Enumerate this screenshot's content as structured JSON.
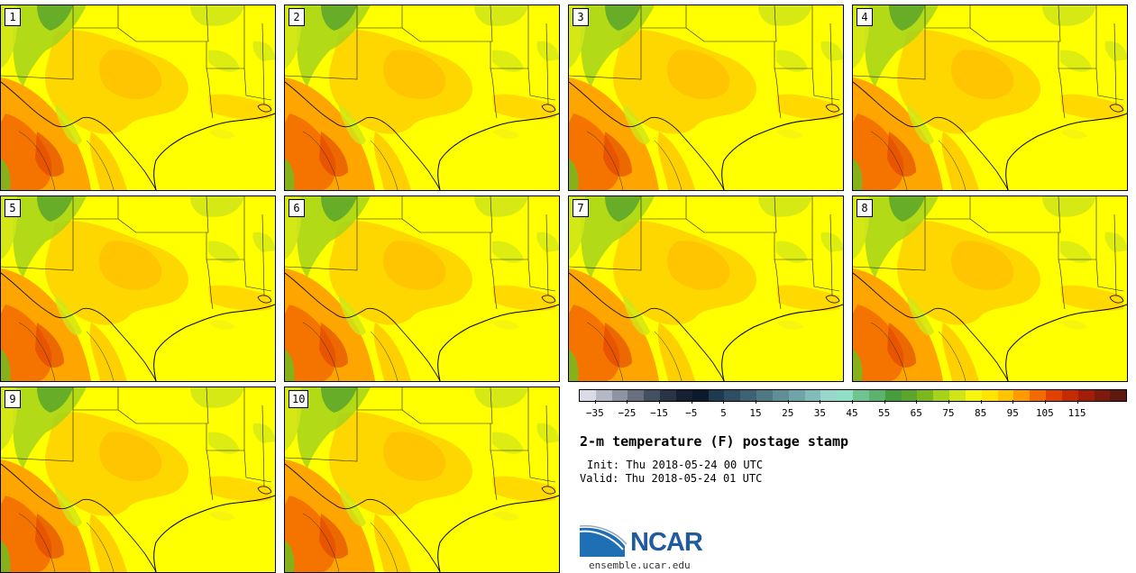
{
  "panels": [
    {
      "label": "1"
    },
    {
      "label": "2"
    },
    {
      "label": "3"
    },
    {
      "label": "4"
    },
    {
      "label": "5"
    },
    {
      "label": "6"
    },
    {
      "label": "7"
    },
    {
      "label": "8"
    },
    {
      "label": "9"
    },
    {
      "label": "10"
    }
  ],
  "colorbar": {
    "colors": [
      "#d9dce6",
      "#b3b8c4",
      "#8d93a1",
      "#68707f",
      "#43505f",
      "#2a3447",
      "#152033",
      "#0c1a2e",
      "#1e3a50",
      "#2d4e63",
      "#3c6274",
      "#4f7885",
      "#5f8e97",
      "#6fa5a8",
      "#82bcb8",
      "#98d6cb",
      "#8fdfc7",
      "#6fc38f",
      "#5bb36d",
      "#469d3c",
      "#5aa52c",
      "#7ab81e",
      "#a5d31a",
      "#cfe518",
      "#f7f50f",
      "#ffe400",
      "#ffc400",
      "#ff9b00",
      "#f36b00",
      "#e04000",
      "#c42b00",
      "#a31e08",
      "#7e1a0c",
      "#5f1a10"
    ],
    "tick_labels": [
      "−35",
      "−25",
      "−15",
      "−5",
      "5",
      "15",
      "25",
      "35",
      "45",
      "55",
      "65",
      "75",
      "85",
      "95",
      "105",
      "115"
    ]
  },
  "title": "2-m temperature (F) postage stamp",
  "init": "Init: Thu 2018-05-24 00 UTC",
  "valid": "Valid: Thu 2018-05-24 01 UTC",
  "logo": {
    "text": "NCAR",
    "url": "ensemble.ucar.edu",
    "color": "#1f5b9e"
  }
}
